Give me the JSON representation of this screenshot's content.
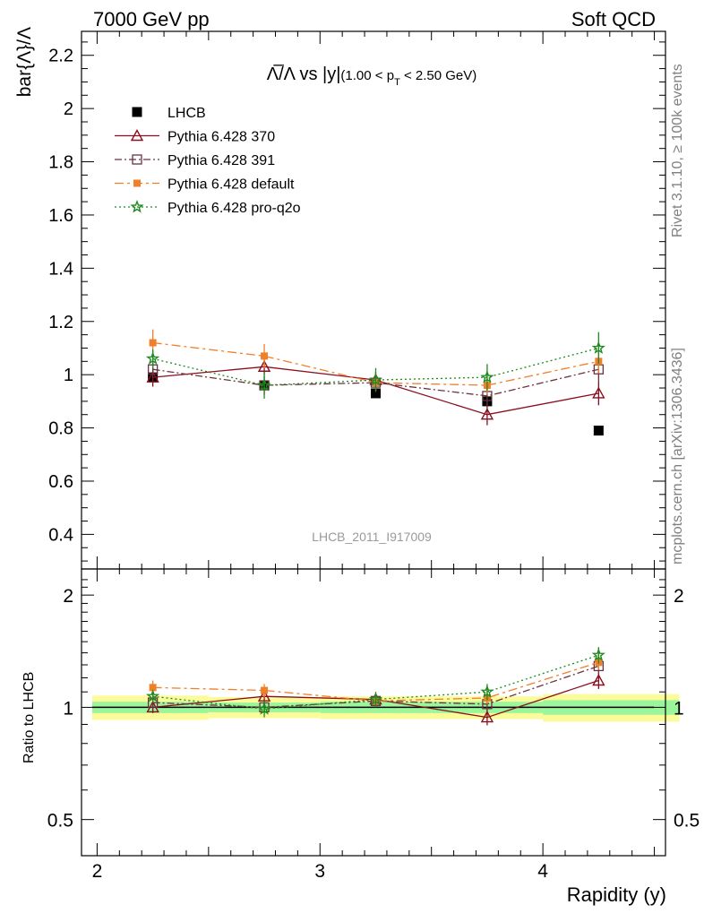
{
  "header": {
    "left_title": "7000 GeV pp",
    "right_title": "Soft QCD"
  },
  "side_labels": {
    "rivet": "Rivet 3.1.10, ≥ 100k events",
    "mcplots": "mcplots.cern.ch [arXiv:1306.3436]"
  },
  "chart_data": {
    "type": "scatter",
    "title_main": "Λ̅/Λ vs |y|",
    "title_range": "(1.00 < p",
    "title_sub": "T",
    "title_range_end": " < 2.50 GeV)",
    "ylabel": "bar{Λ}/Λ",
    "ratio_ylabel": "Ratio to LHCB",
    "xlabel": "Rapidity (y)",
    "watermark": "LHCB_2011_I917009",
    "xlim": [
      1.93,
      4.55
    ],
    "ylim": [
      0.27,
      2.29
    ],
    "ratio_ylim": [
      0.4,
      2.35
    ],
    "x_ticks": [
      "2",
      "3",
      "4"
    ],
    "y_ticks": [
      "0.4",
      "0.6",
      "0.8",
      "1",
      "1.2",
      "1.4",
      "1.6",
      "1.8",
      "2",
      "2.2"
    ],
    "ratio_y_ticks": [
      "0.5",
      "1",
      "2"
    ],
    "legend_position": "top-left",
    "x": [
      2.25,
      2.75,
      3.25,
      3.75,
      4.25
    ],
    "series": [
      {
        "name": "LHCB",
        "color": "#000000",
        "marker": "square",
        "line": "none",
        "values": [
          0.99,
          0.96,
          0.93,
          0.9,
          0.79
        ],
        "err": [
          0.015,
          0.015,
          0.015,
          0.015,
          0.01
        ]
      },
      {
        "name": "Pythia 6.428 370",
        "color": "#8b0e1e",
        "marker": "triangle-open",
        "line": "solid",
        "values": [
          0.99,
          1.03,
          0.98,
          0.85,
          0.93
        ],
        "err": [
          0.035,
          0.03,
          0.03,
          0.04,
          0.045
        ],
        "ratio": [
          1.0,
          1.07,
          1.05,
          0.94,
          1.18
        ],
        "ratio_err": [
          0.035,
          0.03,
          0.035,
          0.045,
          0.06
        ]
      },
      {
        "name": "Pythia 6.428 391",
        "color": "#6b3340",
        "marker": "square-open",
        "line": "dashdot",
        "values": [
          1.02,
          0.96,
          0.97,
          0.92,
          1.02
        ],
        "err": [
          0.035,
          0.035,
          0.03,
          0.035,
          0.045
        ],
        "ratio": [
          1.03,
          1.0,
          1.04,
          1.02,
          1.29
        ],
        "ratio_err": [
          0.035,
          0.035,
          0.035,
          0.04,
          0.06
        ]
      },
      {
        "name": "Pythia 6.428 default",
        "color": "#f07f2a",
        "marker": "square-filled",
        "line": "dashdot-long",
        "values": [
          1.12,
          1.07,
          0.97,
          0.96,
          1.05
        ],
        "err": [
          0.05,
          0.045,
          0.03,
          0.035,
          0.045
        ],
        "ratio": [
          1.13,
          1.11,
          1.04,
          1.06,
          1.32
        ],
        "ratio_err": [
          0.05,
          0.045,
          0.035,
          0.04,
          0.06
        ]
      },
      {
        "name": "Pythia 6.428 pro-q2o",
        "color": "#1f8a1f",
        "marker": "star-open",
        "line": "dotted",
        "values": [
          1.06,
          0.96,
          0.98,
          0.99,
          1.1
        ],
        "err": [
          0.035,
          0.05,
          0.045,
          0.05,
          0.06
        ],
        "ratio": [
          1.07,
          0.99,
          1.05,
          1.1,
          1.38
        ],
        "ratio_err": [
          0.035,
          0.05,
          0.05,
          0.055,
          0.07
        ]
      }
    ],
    "uncertainty_bands": {
      "x_bins": [
        [
          1.93,
          2.5
        ],
        [
          2.5,
          3.0
        ],
        [
          3.0,
          3.5
        ],
        [
          3.5,
          4.0
        ],
        [
          4.0,
          4.5
        ]
      ],
      "inner": [
        [
          0.965,
          1.035
        ],
        [
          0.97,
          1.03
        ],
        [
          0.965,
          1.035
        ],
        [
          0.965,
          1.035
        ],
        [
          0.955,
          1.045
        ]
      ],
      "outer": [
        [
          0.925,
          1.075
        ],
        [
          0.935,
          1.065
        ],
        [
          0.93,
          1.07
        ],
        [
          0.93,
          1.07
        ],
        [
          0.915,
          1.085
        ]
      ],
      "inner_color": "#9bf59b",
      "outer_color": "#fbfb9a"
    }
  }
}
